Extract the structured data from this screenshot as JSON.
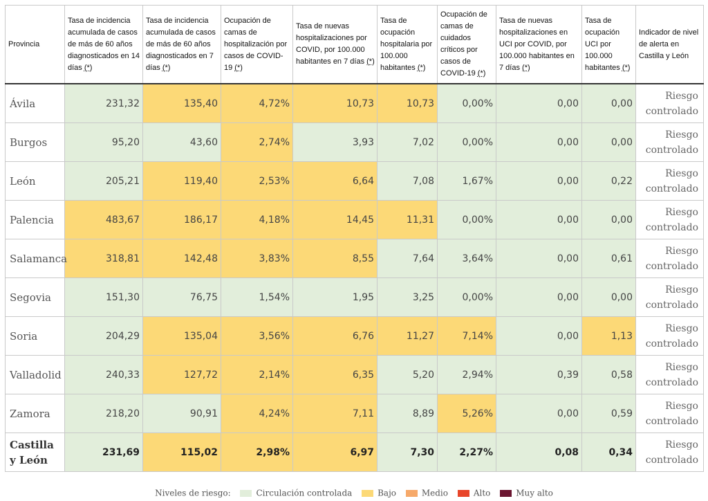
{
  "headers": [
    {
      "text": "Provincia",
      "note": ""
    },
    {
      "text": "Tasa de incidencia acumulada de casos de más de 60 años diagnosticados en 14 días ",
      "note": "(*)"
    },
    {
      "text": "Tasa de incidencia acumulada de casos de más de 60 años diagnosticados en 7 días ",
      "note": "(*)"
    },
    {
      "text": "Ocupación de camas de hospitalización por casos de COVID-19 ",
      "note": "(*)"
    },
    {
      "text": "Tasa de nuevas hospitalizaciones por COVID, por 100.000 habitantes en 7 días ",
      "note": "(*)"
    },
    {
      "text": "Tasa de ocupación hospitalaria por 100.000 habitantes ",
      "note": "(*)"
    },
    {
      "text": "Ocupación de camas de cuidados críticos por casos de COVID-19 ",
      "note": "(*)"
    },
    {
      "text": "Tasa de nuevas hospitalizaciones en UCI por COVID, por 100.000 habitantes en 7 días ",
      "note": "(*)"
    },
    {
      "text": "Tasa de ocupación UCI por 100.000 habitantes ",
      "note": "(*)"
    },
    {
      "text": "Indicador de nivel de alerta en Castilla y León",
      "note": ""
    }
  ],
  "rows": [
    {
      "province": "Ávila",
      "cells": [
        [
          "231,32",
          "g"
        ],
        [
          "135,40",
          "y"
        ],
        [
          "4,72%",
          "y"
        ],
        [
          "10,73",
          "y"
        ],
        [
          "10,73",
          "y"
        ],
        [
          "0,00%",
          "g"
        ],
        [
          "0,00",
          "g"
        ],
        [
          "0,00",
          "g"
        ]
      ],
      "alert": "Riesgo controlado"
    },
    {
      "province": "Burgos",
      "cells": [
        [
          "95,20",
          "g"
        ],
        [
          "43,60",
          "g"
        ],
        [
          "2,74%",
          "y"
        ],
        [
          "3,93",
          "g"
        ],
        [
          "7,02",
          "g"
        ],
        [
          "0,00%",
          "g"
        ],
        [
          "0,00",
          "g"
        ],
        [
          "0,00",
          "g"
        ]
      ],
      "alert": "Riesgo controlado"
    },
    {
      "province": "León",
      "cells": [
        [
          "205,21",
          "g"
        ],
        [
          "119,40",
          "y"
        ],
        [
          "2,53%",
          "y"
        ],
        [
          "6,64",
          "y"
        ],
        [
          "7,08",
          "g"
        ],
        [
          "1,67%",
          "g"
        ],
        [
          "0,00",
          "g"
        ],
        [
          "0,22",
          "g"
        ]
      ],
      "alert": "Riesgo controlado"
    },
    {
      "province": "Palencia",
      "cells": [
        [
          "483,67",
          "y"
        ],
        [
          "186,17",
          "y"
        ],
        [
          "4,18%",
          "y"
        ],
        [
          "14,45",
          "y"
        ],
        [
          "11,31",
          "y"
        ],
        [
          "0,00%",
          "g"
        ],
        [
          "0,00",
          "g"
        ],
        [
          "0,00",
          "g"
        ]
      ],
      "alert": "Riesgo controlado"
    },
    {
      "province": "Salamanca",
      "cells": [
        [
          "318,81",
          "y"
        ],
        [
          "142,48",
          "y"
        ],
        [
          "3,83%",
          "y"
        ],
        [
          "8,55",
          "y"
        ],
        [
          "7,64",
          "g"
        ],
        [
          "3,64%",
          "g"
        ],
        [
          "0,00",
          "g"
        ],
        [
          "0,61",
          "g"
        ]
      ],
      "alert": "Riesgo controlado"
    },
    {
      "province": "Segovia",
      "cells": [
        [
          "151,30",
          "g"
        ],
        [
          "76,75",
          "g"
        ],
        [
          "1,54%",
          "g"
        ],
        [
          "1,95",
          "g"
        ],
        [
          "3,25",
          "g"
        ],
        [
          "0,00%",
          "g"
        ],
        [
          "0,00",
          "g"
        ],
        [
          "0,00",
          "g"
        ]
      ],
      "alert": "Riesgo controlado"
    },
    {
      "province": "Soria",
      "cells": [
        [
          "204,29",
          "g"
        ],
        [
          "135,04",
          "y"
        ],
        [
          "3,56%",
          "y"
        ],
        [
          "6,76",
          "y"
        ],
        [
          "11,27",
          "y"
        ],
        [
          "7,14%",
          "y"
        ],
        [
          "0,00",
          "g"
        ],
        [
          "1,13",
          "y"
        ]
      ],
      "alert": "Riesgo controlado"
    },
    {
      "province": "Valladolid",
      "cells": [
        [
          "240,33",
          "g"
        ],
        [
          "127,72",
          "y"
        ],
        [
          "2,14%",
          "y"
        ],
        [
          "6,35",
          "y"
        ],
        [
          "5,20",
          "g"
        ],
        [
          "2,94%",
          "g"
        ],
        [
          "0,39",
          "g"
        ],
        [
          "0,58",
          "g"
        ]
      ],
      "alert": "Riesgo controlado"
    },
    {
      "province": "Zamora",
      "cells": [
        [
          "218,20",
          "g"
        ],
        [
          "90,91",
          "g"
        ],
        [
          "4,24%",
          "y"
        ],
        [
          "7,11",
          "y"
        ],
        [
          "8,89",
          "g"
        ],
        [
          "5,26%",
          "y"
        ],
        [
          "0,00",
          "g"
        ],
        [
          "0,59",
          "g"
        ]
      ],
      "alert": "Riesgo controlado"
    },
    {
      "province": "Castilla y León",
      "cells": [
        [
          "231,69",
          "g"
        ],
        [
          "115,02",
          "y"
        ],
        [
          "2,98%",
          "y"
        ],
        [
          "6,97",
          "y"
        ],
        [
          "7,30",
          "g"
        ],
        [
          "2,27%",
          "g"
        ],
        [
          "0,08",
          "g"
        ],
        [
          "0,34",
          "g"
        ]
      ],
      "alert": "Riesgo controlado",
      "total": true
    }
  ],
  "legend": {
    "label": "Niveles de riesgo:",
    "items": [
      {
        "label": "Circulación controlada",
        "color": "#e2eedb"
      },
      {
        "label": "Bajo",
        "color": "#fcd977"
      },
      {
        "label": "Medio",
        "color": "#f6a96a"
      },
      {
        "label": "Alto",
        "color": "#e8462a"
      },
      {
        "label": "Muy alto",
        "color": "#6b1631"
      }
    ]
  }
}
